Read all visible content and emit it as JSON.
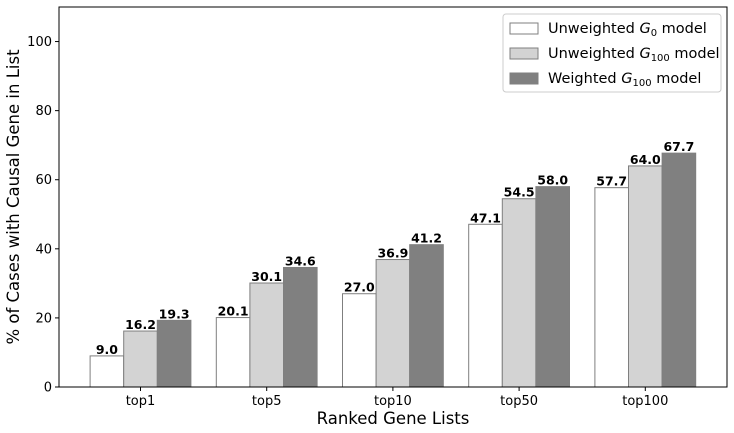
{
  "chart_data": {
    "type": "bar",
    "categories": [
      "top1",
      "top5",
      "top10",
      "top50",
      "top100"
    ],
    "series": [
      {
        "name": "Unweighted G0 model",
        "legend_main": "Unweighted ",
        "legend_sym": "G",
        "legend_sub": "0",
        "legend_tail": " model",
        "color": "#ffffff",
        "edge": "#7f7f7f",
        "values": [
          9.0,
          20.1,
          27.0,
          47.1,
          57.7
        ]
      },
      {
        "name": "Unweighted G100 model",
        "legend_main": "Unweighted ",
        "legend_sym": "G",
        "legend_sub": "100",
        "legend_tail": " model",
        "color": "#d3d3d3",
        "edge": "#7f7f7f",
        "values": [
          16.2,
          30.1,
          36.9,
          54.5,
          64.0
        ]
      },
      {
        "name": "Weighted G100 model",
        "legend_main": "Weighted ",
        "legend_sym": "G",
        "legend_sub": "100",
        "legend_tail": " model",
        "color": "#808080",
        "edge": "#7f7f7f",
        "values": [
          19.3,
          34.6,
          41.2,
          58.0,
          67.7
        ]
      }
    ],
    "xlabel": "Ranked Gene Lists",
    "ylabel": "% of Cases with Causal Gene in List",
    "ylim": [
      0,
      110
    ],
    "yticks": [
      0,
      20,
      40,
      60,
      80,
      100
    ],
    "legend_position": "top-right",
    "grid": false
  }
}
